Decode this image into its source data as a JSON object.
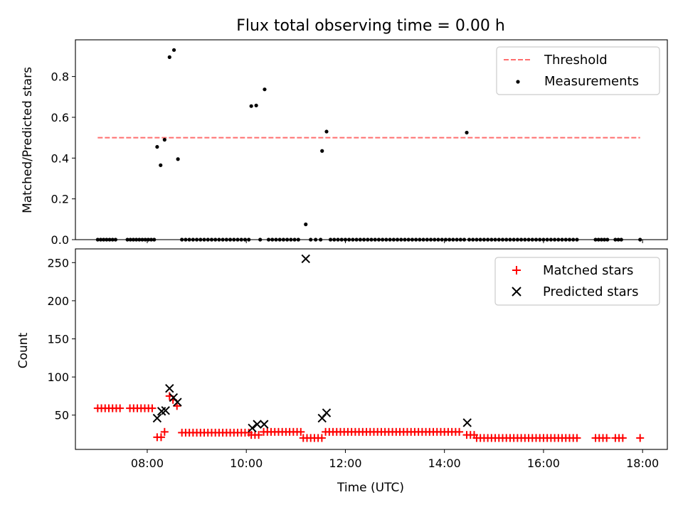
{
  "title": "Flux total observing time = 0.00 h",
  "colors": {
    "threshold": "#ff6e6e",
    "measurements": "#000000",
    "matched": "#ff0000",
    "predicted": "#000000"
  },
  "chart_data": [
    {
      "type": "scatter",
      "ylabel": "Matched/Predicted stars",
      "xlim": [
        6.55,
        18.5
      ],
      "ylim": [
        0,
        0.98
      ],
      "yticks": [
        0.0,
        0.2,
        0.4,
        0.6,
        0.8
      ],
      "ytick_labels": [
        "0.0",
        "0.2",
        "0.4",
        "0.6",
        "0.8"
      ],
      "xticks": [
        8,
        10,
        12,
        14,
        16,
        18
      ],
      "legend_position": "top-right",
      "threshold": {
        "name": "Threshold",
        "y": 0.5,
        "x_range": [
          7.0,
          17.95
        ]
      },
      "measurements": {
        "name": "Measurements",
        "points": [
          [
            8.2,
            0.455
          ],
          [
            8.27,
            0.365
          ],
          [
            8.35,
            0.49
          ],
          [
            8.45,
            0.895
          ],
          [
            8.54,
            0.93
          ],
          [
            8.62,
            0.395
          ],
          [
            10.1,
            0.655
          ],
          [
            10.2,
            0.658
          ],
          [
            10.37,
            0.737
          ],
          [
            11.2,
            0.075
          ],
          [
            11.53,
            0.435
          ],
          [
            11.62,
            0.53
          ],
          [
            14.45,
            0.525
          ]
        ],
        "zero_ranges": [
          [
            7.0,
            7.4,
            0.06
          ],
          [
            7.6,
            8.15,
            0.06
          ],
          [
            8.7,
            10.05,
            0.075
          ],
          [
            10.45,
            11.1,
            0.075
          ],
          [
            11.3,
            11.5,
            0.1
          ],
          [
            11.7,
            14.4,
            0.075
          ],
          [
            14.5,
            16.7,
            0.075
          ],
          [
            17.05,
            17.3,
            0.06
          ],
          [
            17.45,
            17.6,
            0.06
          ]
        ],
        "zero_points": [
          10.28,
          17.95
        ]
      }
    },
    {
      "type": "scatter",
      "ylabel": "Count",
      "xlabel": "Time (UTC)",
      "xlim": [
        6.55,
        18.5
      ],
      "ylim": [
        5,
        268
      ],
      "yticks": [
        50,
        100,
        150,
        200,
        250
      ],
      "ytick_labels": [
        "50",
        "100",
        "150",
        "200",
        "250"
      ],
      "xticks": [
        8,
        10,
        12,
        14,
        16,
        18
      ],
      "xtick_labels": [
        "08:00",
        "10:00",
        "12:00",
        "14:00",
        "16:00",
        "18:00"
      ],
      "legend_position": "top-right",
      "matched": {
        "name": "Matched stars",
        "segments": [
          [
            7.0,
            7.45,
            0.075,
            59
          ],
          [
            7.65,
            8.1,
            0.075,
            59
          ],
          [
            8.2,
            8.28,
            0.08,
            21
          ],
          [
            8.35,
            8.35,
            0.1,
            28
          ],
          [
            8.45,
            8.45,
            0.1,
            75
          ],
          [
            8.52,
            8.52,
            0.1,
            70
          ],
          [
            8.6,
            8.6,
            0.1,
            62
          ],
          [
            8.7,
            10.05,
            0.075,
            27
          ],
          [
            10.1,
            10.3,
            0.075,
            24
          ],
          [
            10.35,
            11.1,
            0.075,
            28
          ],
          [
            11.15,
            11.55,
            0.075,
            20
          ],
          [
            11.6,
            14.35,
            0.075,
            28
          ],
          [
            14.45,
            14.6,
            0.075,
            24
          ],
          [
            14.65,
            16.7,
            0.075,
            20
          ],
          [
            17.05,
            17.3,
            0.075,
            20
          ],
          [
            17.45,
            17.6,
            0.075,
            20
          ],
          [
            17.95,
            17.95,
            0.1,
            20
          ]
        ]
      },
      "predicted": {
        "name": "Predicted stars",
        "points": [
          [
            8.2,
            46
          ],
          [
            8.29,
            55
          ],
          [
            8.37,
            56
          ],
          [
            8.45,
            85
          ],
          [
            8.53,
            73
          ],
          [
            8.61,
            67
          ],
          [
            10.12,
            33
          ],
          [
            10.22,
            38
          ],
          [
            10.36,
            38
          ],
          [
            11.2,
            255
          ],
          [
            11.53,
            46
          ],
          [
            11.62,
            53
          ],
          [
            14.46,
            40
          ]
        ]
      }
    }
  ]
}
